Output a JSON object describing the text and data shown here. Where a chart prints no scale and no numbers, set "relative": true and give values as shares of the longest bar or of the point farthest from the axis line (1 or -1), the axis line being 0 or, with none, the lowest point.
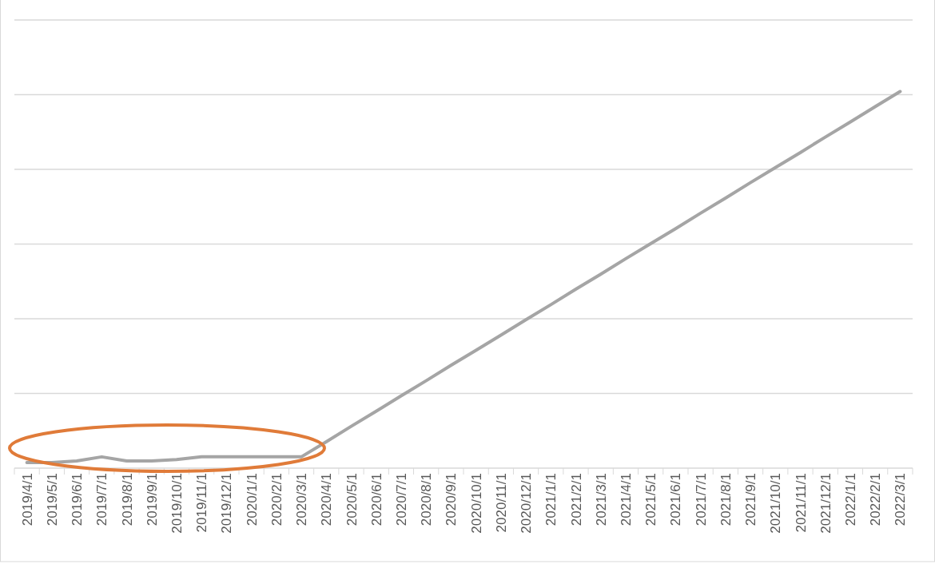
{
  "chart_data": {
    "type": "line",
    "relative": true,
    "grid": "y",
    "categories": [
      "2019/4/1",
      "2019/5/1",
      "2019/6/1",
      "2019/7/1",
      "2019/8/1",
      "2019/9/1",
      "2019/10/1",
      "2019/11/1",
      "2019/12/1",
      "2020/1/1",
      "2020/2/1",
      "2020/3/1",
      "2020/4/1",
      "2020/5/1",
      "2020/6/1",
      "2020/7/1",
      "2020/8/1",
      "2020/9/1",
      "2020/10/1",
      "2020/11/1",
      "2020/12/1",
      "2021/1/1",
      "2021/2/1",
      "2021/3/1",
      "2021/4/1",
      "2021/5/1",
      "2021/6/1",
      "2021/7/1",
      "2021/8/1",
      "2021/9/1",
      "2021/10/1",
      "2021/11/1",
      "2021/12/1",
      "2022/1/1",
      "2022/2/1",
      "2022/3/1"
    ],
    "series": [
      {
        "color": "#a5a5a5",
        "values": [
          0.015,
          0.015,
          0.019,
          0.03,
          0.019,
          0.019,
          0.023,
          0.03,
          0.03,
          0.03,
          0.03,
          0.03,
          0.07,
          0.111,
          0.151,
          0.192,
          0.232,
          0.273,
          0.313,
          0.353,
          0.394,
          0.434,
          0.475,
          0.515,
          0.556,
          0.596,
          0.636,
          0.677,
          0.717,
          0.758,
          0.798,
          0.838,
          0.879,
          0.919,
          0.96,
          1
        ]
      }
    ]
  }
}
